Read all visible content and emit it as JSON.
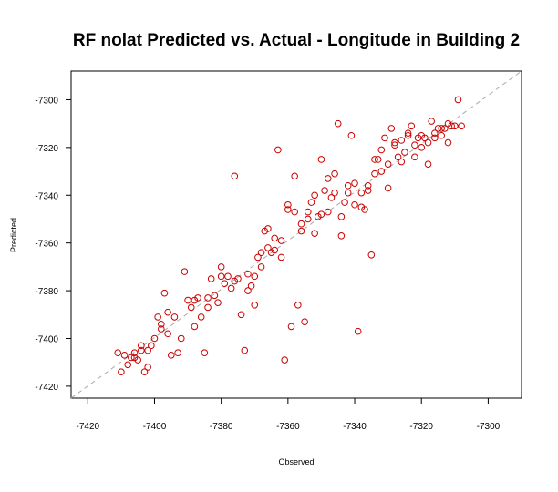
{
  "chart_data": {
    "type": "scatter",
    "title": "RF nolat Predicted vs. Actual - Longitude in Building 2",
    "xlabel": "Observed",
    "ylabel": "Predicted",
    "xlim": [
      -7425,
      -7290
    ],
    "ylim": [
      -7425,
      -7288
    ],
    "x_ticks": [
      -7420,
      -7400,
      -7380,
      -7360,
      -7340,
      -7320,
      -7300
    ],
    "y_ticks": [
      -7420,
      -7400,
      -7380,
      -7360,
      -7340,
      -7320,
      -7300
    ],
    "grid": false,
    "point_color": "#cc0000",
    "reference_line": {
      "style": "dashed",
      "color": "#aaaaaa",
      "slope": 1,
      "intercept": 0
    },
    "series": [
      {
        "points": [
          [
            -7411,
            -7406
          ],
          [
            -7410,
            -7414
          ],
          [
            -7409,
            -7407
          ],
          [
            -7408,
            -7411
          ],
          [
            -7407,
            -7408
          ],
          [
            -7406,
            -7406
          ],
          [
            -7405,
            -7409
          ],
          [
            -7404,
            -7405
          ],
          [
            -7403,
            -7414
          ],
          [
            -7402,
            -7405
          ],
          [
            -7401,
            -7403
          ],
          [
            -7400,
            -7400
          ],
          [
            -7399,
            -7391
          ],
          [
            -7398,
            -7394
          ],
          [
            -7398,
            -7396
          ],
          [
            -7397,
            -7381
          ],
          [
            -7396,
            -7389
          ],
          [
            -7395,
            -7407
          ],
          [
            -7394,
            -7391
          ],
          [
            -7393,
            -7406
          ],
          [
            -7392,
            -7400
          ],
          [
            -7391,
            -7372
          ],
          [
            -7390,
            -7384
          ],
          [
            -7389,
            -7387
          ],
          [
            -7388,
            -7395
          ],
          [
            -7387,
            -7383
          ],
          [
            -7386,
            -7391
          ],
          [
            -7385,
            -7406
          ],
          [
            -7384,
            -7383
          ],
          [
            -7383,
            -7375
          ],
          [
            -7382,
            -7382
          ],
          [
            -7381,
            -7385
          ],
          [
            -7380,
            -7370
          ],
          [
            -7379,
            -7377
          ],
          [
            -7378,
            -7374
          ],
          [
            -7377,
            -7379
          ],
          [
            -7376,
            -7332
          ],
          [
            -7375,
            -7375
          ],
          [
            -7374,
            -7390
          ],
          [
            -7373,
            -7405
          ],
          [
            -7372,
            -7373
          ],
          [
            -7371,
            -7378
          ],
          [
            -7370,
            -7386
          ],
          [
            -7369,
            -7366
          ],
          [
            -7368,
            -7370
          ],
          [
            -7367,
            -7355
          ],
          [
            -7366,
            -7362
          ],
          [
            -7365,
            -7364
          ],
          [
            -7364,
            -7358
          ],
          [
            -7363,
            -7321
          ],
          [
            -7362,
            -7366
          ],
          [
            -7361,
            -7409
          ],
          [
            -7360,
            -7344
          ],
          [
            -7359,
            -7395
          ],
          [
            -7358,
            -7332
          ],
          [
            -7357,
            -7386
          ],
          [
            -7356,
            -7355
          ],
          [
            -7355,
            -7393
          ],
          [
            -7354,
            -7350
          ],
          [
            -7353,
            -7343
          ],
          [
            -7352,
            -7356
          ],
          [
            -7351,
            -7349
          ],
          [
            -7350,
            -7325
          ],
          [
            -7349,
            -7338
          ],
          [
            -7348,
            -7347
          ],
          [
            -7347,
            -7341
          ],
          [
            -7346,
            -7331
          ],
          [
            -7345,
            -7310
          ],
          [
            -7344,
            -7357
          ],
          [
            -7343,
            -7343
          ],
          [
            -7342,
            -7339
          ],
          [
            -7341,
            -7315
          ],
          [
            -7340,
            -7335
          ],
          [
            -7339,
            -7397
          ],
          [
            -7338,
            -7345
          ],
          [
            -7337,
            -7346
          ],
          [
            -7336,
            -7338
          ],
          [
            -7335,
            -7365
          ],
          [
            -7334,
            -7325
          ],
          [
            -7333,
            -7325
          ],
          [
            -7332,
            -7330
          ],
          [
            -7331,
            -7316
          ],
          [
            -7330,
            -7337
          ],
          [
            -7329,
            -7312
          ],
          [
            -7328,
            -7318
          ],
          [
            -7327,
            -7324
          ],
          [
            -7326,
            -7326
          ],
          [
            -7325,
            -7322
          ],
          [
            -7324,
            -7315
          ],
          [
            -7323,
            -7311
          ],
          [
            -7322,
            -7324
          ],
          [
            -7321,
            -7316
          ],
          [
            -7320,
            -7315
          ],
          [
            -7319,
            -7316
          ],
          [
            -7318,
            -7327
          ],
          [
            -7317,
            -7309
          ],
          [
            -7316,
            -7314
          ],
          [
            -7315,
            -7312
          ],
          [
            -7314,
            -7312
          ],
          [
            -7313,
            -7312
          ],
          [
            -7312,
            -7318
          ],
          [
            -7311,
            -7311
          ],
          [
            -7310,
            -7311
          ],
          [
            -7309,
            -7300
          ],
          [
            -7308,
            -7311
          ],
          [
            -7406,
            -7408
          ],
          [
            -7404,
            -7403
          ],
          [
            -7402,
            -7412
          ],
          [
            -7396,
            -7398
          ],
          [
            -7388,
            -7384
          ],
          [
            -7384,
            -7387
          ],
          [
            -7380,
            -7374
          ],
          [
            -7376,
            -7376
          ],
          [
            -7370,
            -7374
          ],
          [
            -7366,
            -7354
          ],
          [
            -7362,
            -7359
          ],
          [
            -7358,
            -7347
          ],
          [
            -7354,
            -7347
          ],
          [
            -7350,
            -7348
          ],
          [
            -7346,
            -7339
          ],
          [
            -7342,
            -7336
          ],
          [
            -7338,
            -7339
          ],
          [
            -7334,
            -7331
          ],
          [
            -7330,
            -7327
          ],
          [
            -7326,
            -7317
          ],
          [
            -7322,
            -7319
          ],
          [
            -7318,
            -7318
          ],
          [
            -7314,
            -7315
          ],
          [
            -7312,
            -7310
          ],
          [
            -7372,
            -7380
          ],
          [
            -7368,
            -7364
          ],
          [
            -7364,
            -7363
          ],
          [
            -7360,
            -7346
          ],
          [
            -7356,
            -7352
          ],
          [
            -7352,
            -7340
          ],
          [
            -7348,
            -7333
          ],
          [
            -7344,
            -7349
          ],
          [
            -7340,
            -7344
          ],
          [
            -7336,
            -7336
          ],
          [
            -7332,
            -7321
          ],
          [
            -7328,
            -7319
          ],
          [
            -7324,
            -7314
          ],
          [
            -7320,
            -7320
          ],
          [
            -7316,
            -7316
          ]
        ]
      }
    ]
  }
}
